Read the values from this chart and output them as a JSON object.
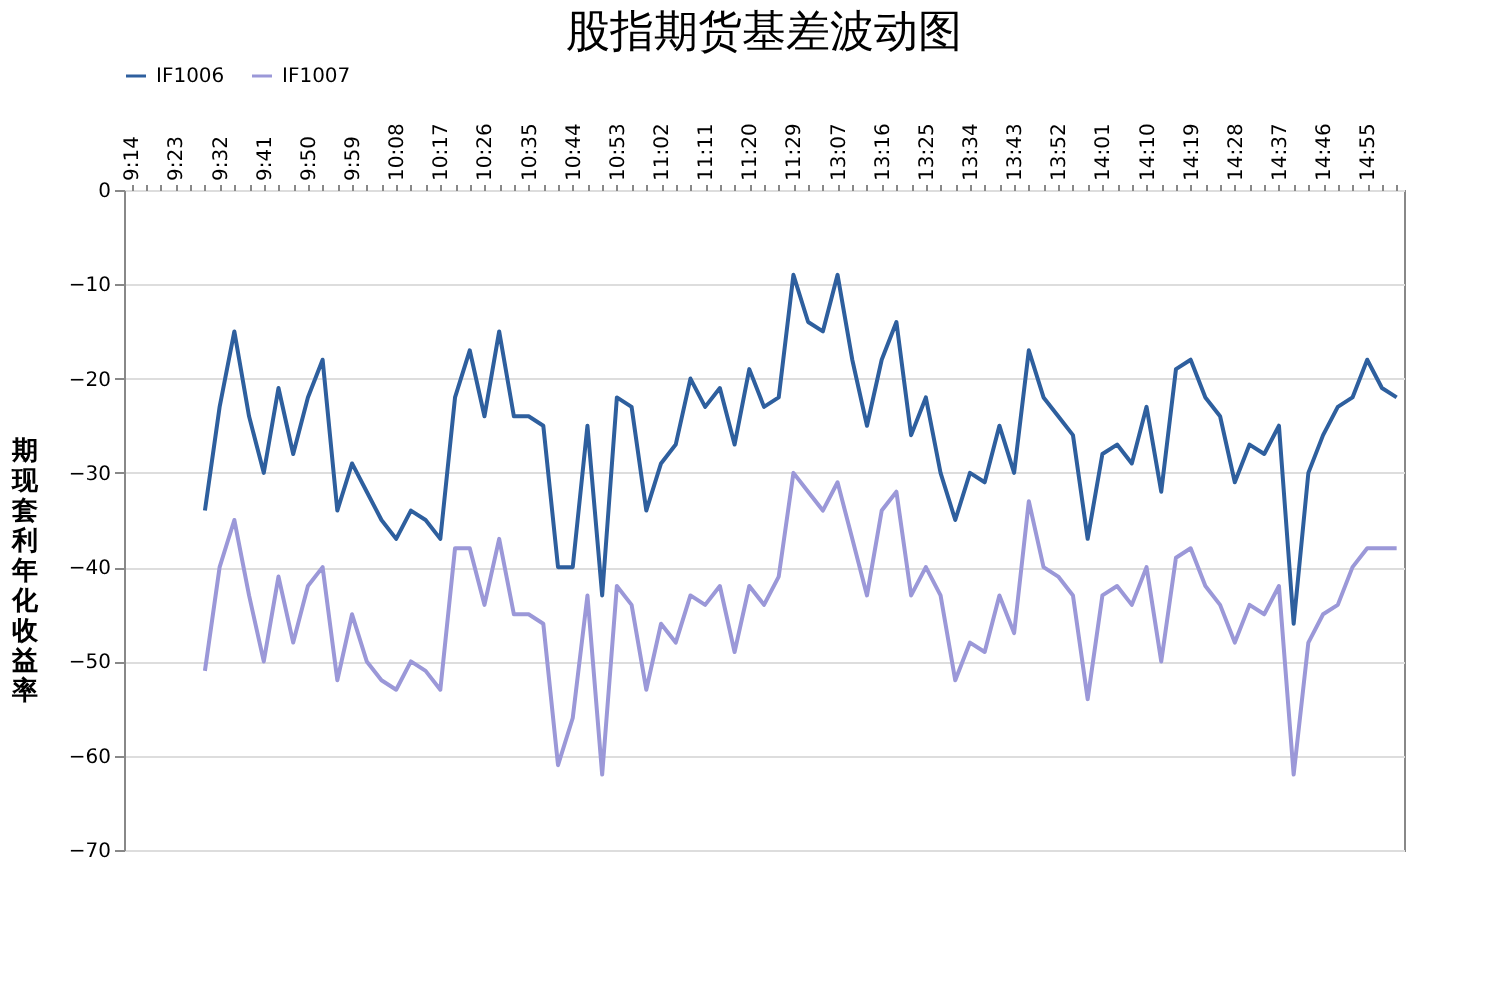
{
  "chart_data": {
    "type": "line",
    "title": "股指期货基差波动图",
    "ylabel": "期现套利年化收益率",
    "categories": [
      "9:14",
      null,
      null,
      "9:23",
      null,
      null,
      "9:32",
      null,
      null,
      "9:41",
      null,
      null,
      "9:50",
      null,
      null,
      "9:59",
      null,
      null,
      "10:08",
      null,
      null,
      "10:17",
      null,
      null,
      "10:26",
      null,
      null,
      "10:35",
      null,
      null,
      "10:44",
      null,
      null,
      "10:53",
      null,
      null,
      "11:02",
      null,
      null,
      "11:11",
      null,
      null,
      "11:20",
      null,
      null,
      "11:29",
      null,
      null,
      "13:07",
      null,
      null,
      "13:16",
      null,
      null,
      "13:25",
      null,
      null,
      "13:34",
      null,
      null,
      "13:43",
      null,
      null,
      "13:52",
      null,
      null,
      "14:01",
      null,
      null,
      "14:10",
      null,
      null,
      "14:19",
      null,
      null,
      "14:28",
      null,
      null,
      "14:37",
      null,
      null,
      "14:46",
      null,
      null,
      "14:55",
      null,
      null
    ],
    "series": [
      {
        "name": "IF1006",
        "color": "#2e5f9e",
        "values": [
          null,
          null,
          null,
          null,
          null,
          -34,
          -23,
          -15,
          -24,
          -30,
          -21,
          -28,
          -22,
          -18,
          -34,
          -29,
          -32,
          -35,
          -37,
          -34,
          -35,
          -37,
          -22,
          -17,
          -24,
          -15,
          -24,
          -24,
          -25,
          -40,
          -40,
          -25,
          -43,
          -22,
          -23,
          -34,
          -29,
          -27,
          -20,
          -23,
          -21,
          -27,
          -19,
          -23,
          -22,
          -9,
          -14,
          -15,
          -9,
          -18,
          -25,
          -18,
          -14,
          -26,
          -22,
          -30,
          -35,
          -30,
          -31,
          -25,
          -30,
          -17,
          -22,
          -24,
          -26,
          -37,
          -28,
          -27,
          -29,
          -23,
          -32,
          -19,
          -18,
          -22,
          -24,
          -31,
          -27,
          -28,
          -25,
          -46,
          -30,
          -26,
          -23,
          -22,
          -18,
          -21,
          -22
        ]
      },
      {
        "name": "IF1007",
        "color": "#9b98d8",
        "values": [
          null,
          null,
          null,
          null,
          null,
          -51,
          -40,
          -35,
          -43,
          -50,
          -41,
          -48,
          -42,
          -40,
          -52,
          -45,
          -50,
          -52,
          -53,
          -50,
          -51,
          -53,
          -38,
          -38,
          -44,
          -37,
          -45,
          -45,
          -46,
          -61,
          -56,
          -43,
          -62,
          -42,
          -44,
          -53,
          -46,
          -48,
          -43,
          -44,
          -42,
          -49,
          -42,
          -44,
          -41,
          -30,
          -32,
          -34,
          -31,
          -37,
          -43,
          -34,
          -32,
          -43,
          -40,
          -43,
          -52,
          -48,
          -49,
          -43,
          -47,
          -33,
          -40,
          -41,
          -43,
          -54,
          -43,
          -42,
          -44,
          -40,
          -50,
          -39,
          -38,
          -42,
          -44,
          -48,
          -44,
          -45,
          -42,
          -62,
          -48,
          -45,
          -44,
          -40,
          -38,
          -38,
          -38
        ]
      }
    ],
    "ylim": [
      -70,
      0
    ],
    "yticks": [
      0,
      -10,
      -20,
      -30,
      -40,
      -50,
      -60,
      -70
    ],
    "grid": "y",
    "legend": "top",
    "line_style": "solid",
    "marker": "none"
  }
}
